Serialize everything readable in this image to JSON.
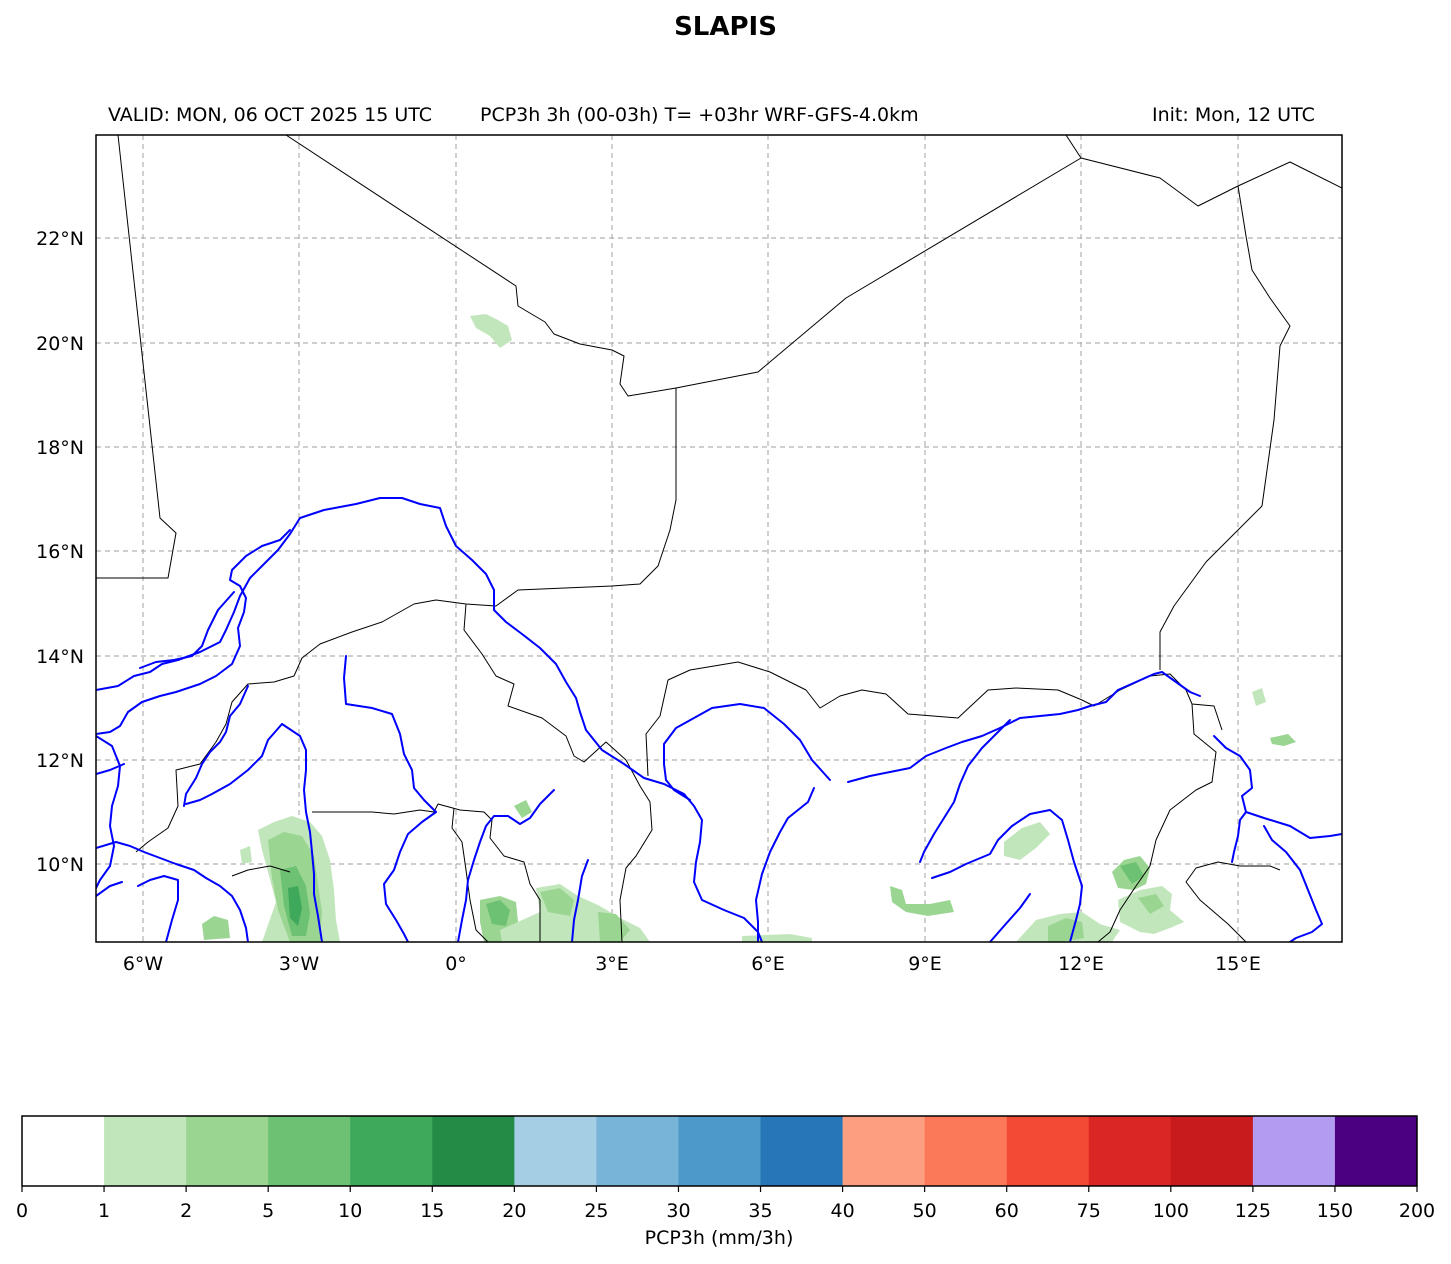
{
  "header": {
    "title": "SLAPIS",
    "valid": "VALID: MON, 06 OCT 2025 15 UTC",
    "product": "PCP3h 3h (00-03h) T= +03hr WRF-GFS-4.0km",
    "init": "Init: Mon, 12 UTC"
  },
  "map": {
    "lon_labels": [
      "6°W",
      "3°W",
      "0°",
      "3°E",
      "6°E",
      "9°E",
      "12°E",
      "15°E"
    ],
    "lat_labels": [
      "22°N",
      "20°N",
      "18°N",
      "16°N",
      "14°N",
      "12°N",
      "10°N"
    ],
    "gridlines": true,
    "border_color": "#000000",
    "river_color": "#0000ff"
  },
  "colorbar": {
    "label": "PCP3h (mm/3h)",
    "ticks": [
      "0",
      "1",
      "2",
      "5",
      "10",
      "15",
      "20",
      "25",
      "30",
      "35",
      "40",
      "50",
      "60",
      "75",
      "100",
      "125",
      "150",
      "200"
    ],
    "colors": [
      "#ffffff",
      "#c2e6bb",
      "#9ad592",
      "#6dc172",
      "#3fa95b",
      "#238b45",
      "#a5cde3",
      "#77b4d8",
      "#4d99c9",
      "#2676b8",
      "#fc9f81",
      "#fb7959",
      "#f14a35",
      "#da2723",
      "#c81b1d",
      "#b19cf2",
      "#4b0082"
    ]
  }
}
